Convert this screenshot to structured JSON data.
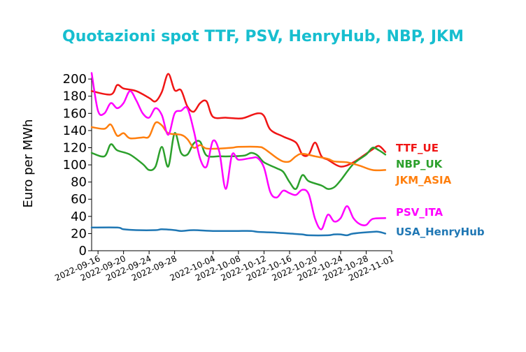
{
  "chart_data": {
    "type": "line",
    "title": "Quotazioni spot TTF, PSV, HenryHub, NBP, JKM",
    "title_color": "#17becf",
    "xlabel": "",
    "ylabel": "Euro per MWh",
    "ylim": [
      0,
      205
    ],
    "yticks": [
      0,
      20,
      40,
      60,
      80,
      100,
      120,
      140,
      160,
      180,
      200
    ],
    "xlim": [
      "2022-09-15",
      "2022-11-01"
    ],
    "xticks": [
      "2022-09-16",
      "2022-09-20",
      "2022-09-24",
      "2022-09-28",
      "2022-10-04",
      "2022-10-08",
      "2022-10-12",
      "2022-10-16",
      "2022-10-20",
      "2022-10-24",
      "2022-10-28",
      "2022-11-01"
    ],
    "grid": false,
    "legend": "right, labels at line ends",
    "series": [
      {
        "name": "TTF_UE",
        "color": "#f01515",
        "points": [
          [
            "2022-09-15",
            186
          ],
          [
            "2022-09-18",
            182
          ],
          [
            "2022-09-19",
            193
          ],
          [
            "2022-09-20",
            189
          ],
          [
            "2022-09-22",
            186
          ],
          [
            "2022-09-24",
            178
          ],
          [
            "2022-09-25",
            174
          ],
          [
            "2022-09-26",
            185
          ],
          [
            "2022-09-27",
            206
          ],
          [
            "2022-09-28",
            187
          ],
          [
            "2022-09-29",
            187
          ],
          [
            "2022-09-30",
            168
          ],
          [
            "2022-10-01",
            162
          ],
          [
            "2022-10-02",
            172
          ],
          [
            "2022-10-03",
            174
          ],
          [
            "2022-10-04",
            156
          ],
          [
            "2022-10-06",
            155
          ],
          [
            "2022-10-08",
            154
          ],
          [
            "2022-10-09",
            155
          ],
          [
            "2022-10-11",
            160
          ],
          [
            "2022-10-12",
            157
          ],
          [
            "2022-10-13",
            141
          ],
          [
            "2022-10-15",
            133
          ],
          [
            "2022-10-17",
            126
          ],
          [
            "2022-10-18",
            112
          ],
          [
            "2022-10-19",
            112
          ],
          [
            "2022-10-20",
            126
          ],
          [
            "2022-10-21",
            110
          ],
          [
            "2022-10-22",
            106
          ],
          [
            "2022-10-24",
            98
          ],
          [
            "2022-10-26",
            103
          ],
          [
            "2022-10-28",
            113
          ],
          [
            "2022-10-29",
            118
          ],
          [
            "2022-10-30",
            122
          ],
          [
            "2022-10-31",
            115
          ]
        ]
      },
      {
        "name": "NBP_UK",
        "color": "#2ca02c",
        "points": [
          [
            "2022-09-15",
            114
          ],
          [
            "2022-09-17",
            110
          ],
          [
            "2022-09-18",
            124
          ],
          [
            "2022-09-19",
            117
          ],
          [
            "2022-09-21",
            112
          ],
          [
            "2022-09-23",
            101
          ],
          [
            "2022-09-24",
            94
          ],
          [
            "2022-09-25",
            98
          ],
          [
            "2022-09-26",
            121
          ],
          [
            "2022-09-27",
            98
          ],
          [
            "2022-09-28",
            137
          ],
          [
            "2022-09-29",
            114
          ],
          [
            "2022-09-30",
            112
          ],
          [
            "2022-10-01",
            125
          ],
          [
            "2022-10-02",
            127
          ],
          [
            "2022-10-03",
            111
          ],
          [
            "2022-10-05",
            110
          ],
          [
            "2022-10-07",
            110
          ],
          [
            "2022-10-09",
            111
          ],
          [
            "2022-10-10",
            114
          ],
          [
            "2022-10-11",
            111
          ],
          [
            "2022-10-12",
            103
          ],
          [
            "2022-10-14",
            96
          ],
          [
            "2022-10-15",
            92
          ],
          [
            "2022-10-16",
            80
          ],
          [
            "2022-10-17",
            72
          ],
          [
            "2022-10-18",
            88
          ],
          [
            "2022-10-19",
            81
          ],
          [
            "2022-10-21",
            76
          ],
          [
            "2022-10-22",
            72
          ],
          [
            "2022-10-23",
            74
          ],
          [
            "2022-10-24",
            82
          ],
          [
            "2022-10-26",
            101
          ],
          [
            "2022-10-28",
            112
          ],
          [
            "2022-10-29",
            120
          ],
          [
            "2022-10-30",
            117
          ],
          [
            "2022-10-31",
            112
          ]
        ]
      },
      {
        "name": "JKM_ASIA",
        "color": "#ff7f0e",
        "points": [
          [
            "2022-09-15",
            144
          ],
          [
            "2022-09-17",
            142
          ],
          [
            "2022-09-18",
            147
          ],
          [
            "2022-09-19",
            134
          ],
          [
            "2022-09-20",
            137
          ],
          [
            "2022-09-21",
            131
          ],
          [
            "2022-09-23",
            132
          ],
          [
            "2022-09-24",
            133
          ],
          [
            "2022-09-25",
            149
          ],
          [
            "2022-09-26",
            146
          ],
          [
            "2022-09-27",
            137
          ],
          [
            "2022-09-29",
            135
          ],
          [
            "2022-09-30",
            130
          ],
          [
            "2022-10-01",
            120
          ],
          [
            "2022-10-02",
            123
          ],
          [
            "2022-10-03",
            119
          ],
          [
            "2022-10-05",
            119
          ],
          [
            "2022-10-07",
            120
          ],
          [
            "2022-10-08",
            121
          ],
          [
            "2022-10-11",
            121
          ],
          [
            "2022-10-12",
            119
          ],
          [
            "2022-10-14",
            108
          ],
          [
            "2022-10-15",
            104
          ],
          [
            "2022-10-16",
            104
          ],
          [
            "2022-10-17",
            110
          ],
          [
            "2022-10-18",
            113
          ],
          [
            "2022-10-20",
            110
          ],
          [
            "2022-10-22",
            107
          ],
          [
            "2022-10-23",
            104
          ],
          [
            "2022-10-25",
            103
          ],
          [
            "2022-10-27",
            99
          ],
          [
            "2022-10-29",
            94
          ],
          [
            "2022-10-31",
            94
          ]
        ]
      },
      {
        "name": "PSV_ITA",
        "color": "#ff00ff",
        "points": [
          [
            "2022-09-15",
            207
          ],
          [
            "2022-09-16",
            163
          ],
          [
            "2022-09-17",
            160
          ],
          [
            "2022-09-18",
            172
          ],
          [
            "2022-09-19",
            166
          ],
          [
            "2022-09-20",
            172
          ],
          [
            "2022-09-21",
            186
          ],
          [
            "2022-09-22",
            175
          ],
          [
            "2022-09-23",
            160
          ],
          [
            "2022-09-24",
            155
          ],
          [
            "2022-09-25",
            166
          ],
          [
            "2022-09-26",
            158
          ],
          [
            "2022-09-27",
            135
          ],
          [
            "2022-09-28",
            160
          ],
          [
            "2022-09-29",
            163
          ],
          [
            "2022-09-30",
            166
          ],
          [
            "2022-10-01",
            140
          ],
          [
            "2022-10-02",
            107
          ],
          [
            "2022-10-03",
            98
          ],
          [
            "2022-10-04",
            128
          ],
          [
            "2022-10-05",
            115
          ],
          [
            "2022-10-06",
            72
          ],
          [
            "2022-10-07",
            112
          ],
          [
            "2022-10-08",
            106
          ],
          [
            "2022-10-10",
            108
          ],
          [
            "2022-10-11",
            108
          ],
          [
            "2022-10-12",
            97
          ],
          [
            "2022-10-13",
            68
          ],
          [
            "2022-10-14",
            62
          ],
          [
            "2022-10-15",
            70
          ],
          [
            "2022-10-16",
            67
          ],
          [
            "2022-10-17",
            65
          ],
          [
            "2022-10-18",
            71
          ],
          [
            "2022-10-19",
            66
          ],
          [
            "2022-10-20",
            37
          ],
          [
            "2022-10-21",
            25
          ],
          [
            "2022-10-22",
            42
          ],
          [
            "2022-10-23",
            34
          ],
          [
            "2022-10-24",
            38
          ],
          [
            "2022-10-25",
            52
          ],
          [
            "2022-10-26",
            38
          ],
          [
            "2022-10-27",
            31
          ],
          [
            "2022-10-28",
            30
          ],
          [
            "2022-10-29",
            37
          ],
          [
            "2022-10-31",
            38
          ]
        ]
      },
      {
        "name": "USA_HenryHub",
        "color": "#1f77b4",
        "points": [
          [
            "2022-09-15",
            27
          ],
          [
            "2022-09-19",
            27
          ],
          [
            "2022-09-20",
            25
          ],
          [
            "2022-09-22",
            24
          ],
          [
            "2022-09-25",
            24
          ],
          [
            "2022-09-26",
            25
          ],
          [
            "2022-09-28",
            24
          ],
          [
            "2022-09-29",
            23
          ],
          [
            "2022-10-01",
            24
          ],
          [
            "2022-10-04",
            23
          ],
          [
            "2022-10-07",
            23
          ],
          [
            "2022-10-08",
            23
          ],
          [
            "2022-10-10",
            23
          ],
          [
            "2022-10-11",
            22
          ],
          [
            "2022-10-14",
            21
          ],
          [
            "2022-10-16",
            20
          ],
          [
            "2022-10-18",
            19
          ],
          [
            "2022-10-19",
            18
          ],
          [
            "2022-10-22",
            18
          ],
          [
            "2022-10-23",
            19
          ],
          [
            "2022-10-24",
            19
          ],
          [
            "2022-10-25",
            18
          ],
          [
            "2022-10-26",
            20
          ],
          [
            "2022-10-29",
            22
          ],
          [
            "2022-10-30",
            22
          ],
          [
            "2022-10-31",
            20
          ]
        ]
      }
    ]
  }
}
